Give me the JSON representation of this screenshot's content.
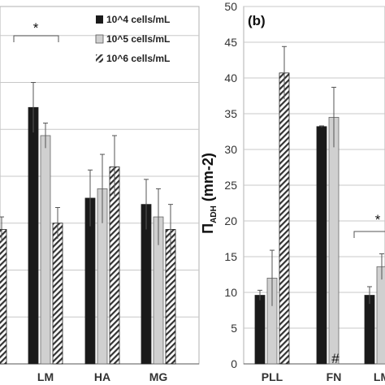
{
  "series_styles": [
    {
      "fill": "#1a1a1a",
      "pattern": "solid"
    },
    {
      "fill": "#d0d0d0",
      "pattern": "solid"
    },
    {
      "fill": "#ffffff",
      "pattern": "diagonal-hatch"
    }
  ],
  "legend": {
    "entries": [
      "10^4 cells/mL",
      "10^5 cells/mL",
      "10^6 cells/mL"
    ]
  },
  "panel_a": {
    "significance_label": "*"
  },
  "panel_b": {
    "label": "(b)",
    "ylabel_symbol": "Π",
    "ylabel_subscript": "ADH",
    "ylabel_unit": " (mm-2)",
    "significance_label": "*",
    "fn_marker": "#"
  },
  "chart_data": [
    {
      "type": "bar",
      "title": "",
      "xlabel": "",
      "ylabel": "",
      "categories": [
        "",
        "LM",
        "HA",
        "MG"
      ],
      "series": [
        {
          "name": "10^4 cells/mL",
          "values": [
            null,
            82,
            53,
            51
          ],
          "errors": [
            null,
            8,
            9,
            8
          ]
        },
        {
          "name": "10^5 cells/mL",
          "values": [
            null,
            73,
            56,
            47
          ],
          "errors": [
            null,
            4,
            11,
            9
          ]
        },
        {
          "name": "10^6 cells/mL",
          "values": [
            43,
            45,
            63,
            43
          ],
          "errors": [
            4,
            5,
            10,
            8
          ]
        }
      ],
      "grid": "horizontal",
      "legend_position": "top-right"
    },
    {
      "type": "bar",
      "title": "",
      "xlabel": "",
      "ylabel": "ΠADH (mm-2)",
      "categories": [
        "PLL",
        "FN",
        "LM"
      ],
      "series": [
        {
          "name": "10^4 cells/mL",
          "values": [
            9.6,
            33.2,
            9.6
          ],
          "errors": [
            0.7,
            0.1,
            1.2
          ]
        },
        {
          "name": "10^5 cells/mL",
          "values": [
            12.0,
            34.5,
            13.6
          ],
          "errors": [
            3.9,
            4.2,
            1.8
          ]
        },
        {
          "name": "10^6 cells/mL",
          "values": [
            40.7,
            null,
            null
          ],
          "errors": [
            3.7,
            null,
            null
          ]
        }
      ],
      "ylim": [
        0,
        50
      ],
      "yticks": [
        0,
        5,
        10,
        15,
        20,
        25,
        30,
        35,
        40,
        45,
        50
      ],
      "grid": "horizontal"
    }
  ]
}
